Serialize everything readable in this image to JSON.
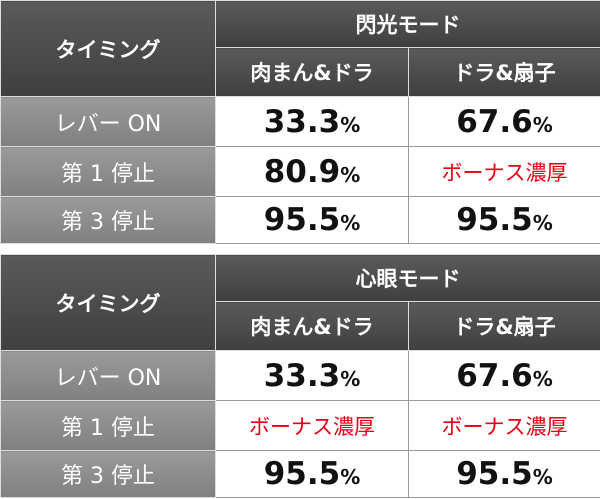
{
  "tables": [
    {
      "timing_header": "タイミング",
      "mode": "閃光モード",
      "columns": [
        "肉まん&ドラ",
        "ドラ&扇子"
      ],
      "rows": [
        {
          "label": "レバー ON",
          "cells": [
            "33.3%",
            "67.6%"
          ]
        },
        {
          "label": "第 1 停止",
          "cells": [
            "80.9%",
            "ボーナス濃厚"
          ]
        },
        {
          "label": "第 3 停止",
          "cells": [
            "95.5%",
            "95.5%"
          ]
        }
      ]
    },
    {
      "timing_header": "タイミング",
      "mode": "心眼モード",
      "columns": [
        "肉まん&ドラ",
        "ドラ&扇子"
      ],
      "rows": [
        {
          "label": "レバー ON",
          "cells": [
            "33.3%",
            "67.6%"
          ]
        },
        {
          "label": "第 1 停止",
          "cells": [
            "ボーナス濃厚",
            "ボーナス濃厚"
          ]
        },
        {
          "label": "第 3 停止",
          "cells": [
            "95.5%",
            "95.5%"
          ]
        }
      ]
    }
  ]
}
